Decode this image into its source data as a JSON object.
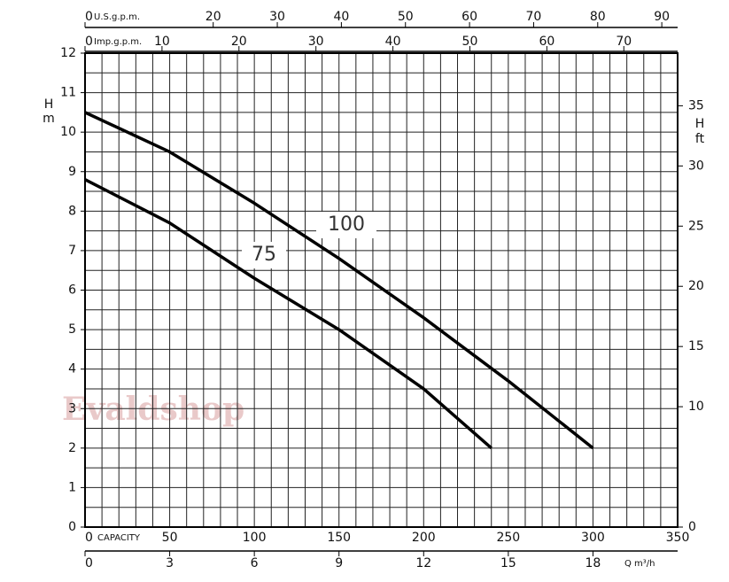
{
  "chart_data": {
    "type": "line",
    "watermark": "Evaldshop",
    "xlabel": "CAPACITY",
    "xlim": [
      0,
      350
    ],
    "xticks": [
      0,
      50,
      100,
      150,
      200,
      250,
      300,
      350
    ],
    "xgrid": [
      0,
      10,
      20,
      30,
      40,
      50,
      60,
      70,
      80,
      90,
      100,
      110,
      120,
      130,
      140,
      150,
      160,
      170,
      180,
      190,
      200,
      210,
      220,
      230,
      240,
      250,
      260,
      270,
      280,
      290,
      300,
      310,
      320,
      330,
      340,
      350
    ],
    "ylabel": "H",
    "yunit": "m",
    "ylim": [
      0,
      12
    ],
    "yticks": [
      0,
      1,
      2,
      3,
      4,
      5,
      6,
      7,
      8,
      9,
      10,
      11,
      12
    ],
    "ygrid": [
      0,
      0.5,
      1,
      1.5,
      2,
      2.5,
      3,
      3.5,
      4,
      4.5,
      5,
      5.5,
      6,
      6.5,
      7,
      7.5,
      8,
      8.5,
      9,
      9.5,
      10,
      10.5,
      11,
      11.5,
      12
    ],
    "y2label": "H",
    "y2unit": "ft",
    "y2lim": [
      0,
      39.37
    ],
    "y2ticks": [
      0,
      10,
      15,
      20,
      25,
      30,
      35
    ],
    "x_m3h": {
      "label": "Q m³/h",
      "lim": [
        0,
        21
      ],
      "ticks": [
        0,
        3,
        6,
        9,
        12,
        15,
        18
      ]
    },
    "x_usgpm": {
      "label": "U.S.g.p.m.",
      "lim": [
        0,
        92.47
      ],
      "ticks": [
        0,
        20,
        30,
        40,
        50,
        60,
        70,
        80,
        90
      ]
    },
    "x_impgpm": {
      "label": "Imp.g.p.m.",
      "lim": [
        0,
        76.99
      ],
      "ticks": [
        0,
        10,
        20,
        30,
        40,
        50,
        60,
        70
      ]
    },
    "series": [
      {
        "name": "100",
        "color": "#000000",
        "x": [
          0,
          50,
          100,
          150,
          200,
          250,
          300
        ],
        "values": [
          10.5,
          9.5,
          8.2,
          6.8,
          5.3,
          3.7,
          2.0
        ]
      },
      {
        "name": "75",
        "color": "#000000",
        "x": [
          0,
          50,
          100,
          150,
          200,
          240
        ],
        "values": [
          8.8,
          7.7,
          6.3,
          5.0,
          3.5,
          2.0
        ]
      }
    ]
  }
}
